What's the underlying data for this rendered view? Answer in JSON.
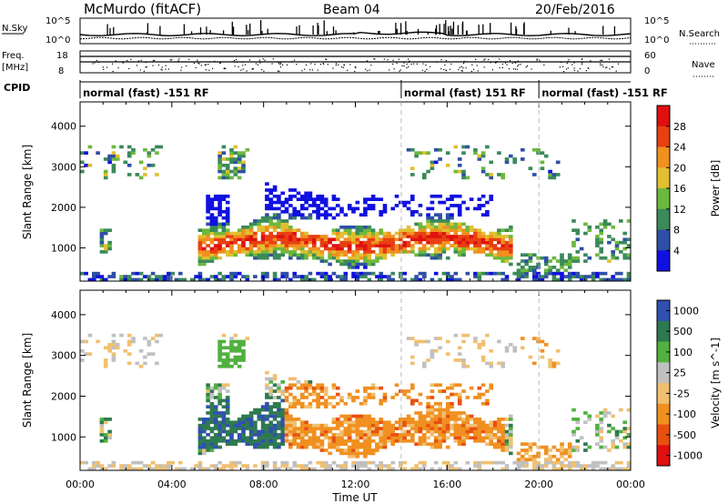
{
  "header": {
    "site": "McMurdo (fitACF)",
    "beam": "Beam 04",
    "date": "20/Feb/2016"
  },
  "noise_panel": {
    "left_label": "N.Sky",
    "right_label": "N.Search",
    "tick_top": "10^5",
    "tick_bottom": "10^0",
    "right_tick_top": "10^5",
    "right_tick_bottom": "10^0"
  },
  "freq_panel": {
    "label_line1": "Freq.",
    "label_line2": "[MHz]",
    "tick_top": "18",
    "tick_bottom": "8",
    "right_label": "Nave",
    "right_tick_top": "60",
    "right_tick_bottom": "0"
  },
  "cpid": {
    "label": "CPID",
    "segments": [
      {
        "text": "normal (fast) -151 RF",
        "start": 0,
        "end": 14
      },
      {
        "text": "normal (fast) 151 RF",
        "start": 14,
        "end": 20
      },
      {
        "text": "normal (fast) -151 RF",
        "start": 20,
        "end": 24
      }
    ]
  },
  "colors": {
    "power": [
      "#1010e0",
      "#2e4fa6",
      "#3a8a5a",
      "#6db83c",
      "#e0c030",
      "#f09020",
      "#e84010",
      "#e01010"
    ],
    "velocity": [
      "#3050b0",
      "#2e7a50",
      "#50b040",
      "#c0c0c0",
      "#f0c070",
      "#f09020",
      "#e85010",
      "#e01010"
    ]
  },
  "chart_data": [
    {
      "type": "heatmap",
      "title": "Power",
      "ylabel": "Slant Range [km]",
      "ylim": [
        180,
        4600
      ],
      "y_ticks": [
        "1000",
        "2000",
        "3000",
        "4000"
      ],
      "x_ticks": [
        "00:00",
        "04:00",
        "08:00",
        "12:00",
        "16:00",
        "20:00",
        "00:00"
      ],
      "xlim_hours": [
        0,
        24
      ],
      "colorbar": {
        "label": "Power [dB]",
        "range": [
          0,
          32
        ],
        "ticks": [
          "4",
          "8",
          "12",
          "16",
          "20",
          "24",
          "28"
        ]
      }
    },
    {
      "type": "heatmap",
      "title": "Velocity",
      "ylabel": "Slant Range [km]",
      "xlabel": "Time UT",
      "ylim": [
        180,
        4600
      ],
      "y_ticks": [
        "1000",
        "2000",
        "3000",
        "4000"
      ],
      "x_ticks": [
        "00:00",
        "04:00",
        "08:00",
        "12:00",
        "16:00",
        "20:00",
        "00:00"
      ],
      "xlim_hours": [
        0,
        24
      ],
      "colorbar": {
        "label": "Velocity [m s^-1]",
        "ticks": [
          "1000",
          "500",
          "100",
          "25",
          "-25",
          "-100",
          "-500",
          "-1000"
        ]
      }
    }
  ]
}
